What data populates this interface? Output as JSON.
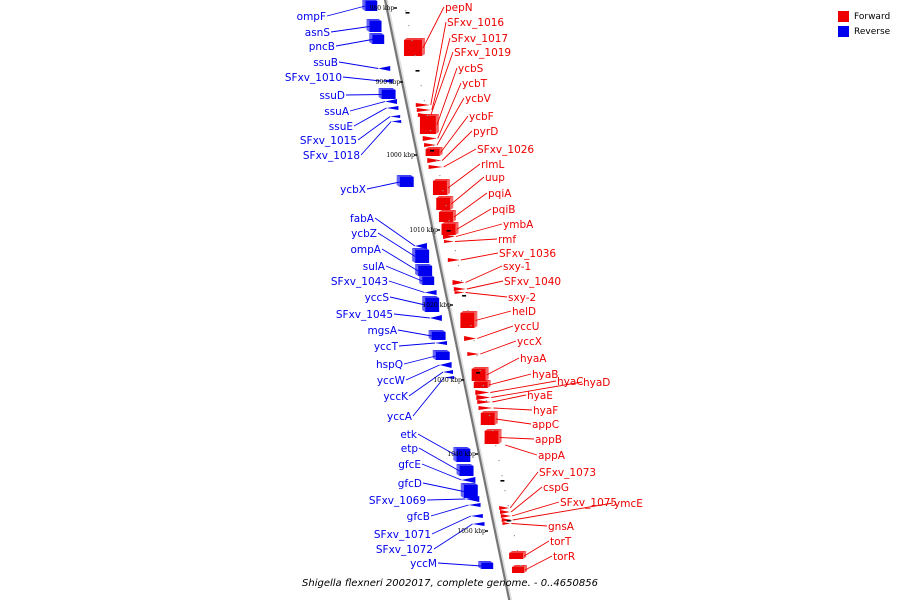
{
  "colors": {
    "forward": "#ee0000",
    "reverse": "#0000ee",
    "backbone": "#777777"
  },
  "legend": [
    {
      "label": "Forward",
      "color": "#ee0000"
    },
    {
      "label": "Reverse",
      "color": "#0000ee"
    }
  ],
  "caption": "Shigella flexneri 2002017, complete genome. - 0..4650856",
  "ticks": [
    "980 kbp",
    "990 kbp",
    "1000 kbp",
    "1010 kbp",
    "1020 kbp",
    "1030 kbp",
    "1040 kbp",
    "1050 kbp"
  ],
  "forward_genes": [
    "pepN",
    "SFxv_1016",
    "SFxv_1017",
    "SFxv_1019",
    "ycbS",
    "ycbT",
    "ycbV",
    "ycbF",
    "pyrD",
    "SFxv_1026",
    "rlmL",
    "uup",
    "pqiA",
    "pqiB",
    "ymbA",
    "rmf",
    "SFxv_1036",
    "sxy-1",
    "SFxv_1040",
    "sxy-2",
    "helD",
    "yccU",
    "yccX",
    "hyaA",
    "hyaB",
    "hyaC",
    "hyaD",
    "hyaE",
    "hyaF",
    "appC",
    "appB",
    "appA",
    "SFxv_1073",
    "cspG",
    "SFxv_1075",
    "ymcE",
    "gnsA",
    "torT",
    "torR"
  ],
  "reverse_genes": [
    "ompF",
    "asnS",
    "pncB",
    "ssuB",
    "SFxv_1010",
    "ssuD",
    "ssuA",
    "ssuE",
    "SFxv_1015",
    "SFxv_1018",
    "ycbX",
    "fabA",
    "ycbZ",
    "ompA",
    "sulA",
    "SFxv_1043",
    "yccS",
    "SFxv_1045",
    "mgsA",
    "yccT",
    "hspQ",
    "yccW",
    "yccK",
    "yccA",
    "etk",
    "etp",
    "gfcE",
    "gfcD",
    "SFxv_1069",
    "gfcB",
    "SFxv_1071",
    "SFxv_1072",
    "yccM"
  ]
}
